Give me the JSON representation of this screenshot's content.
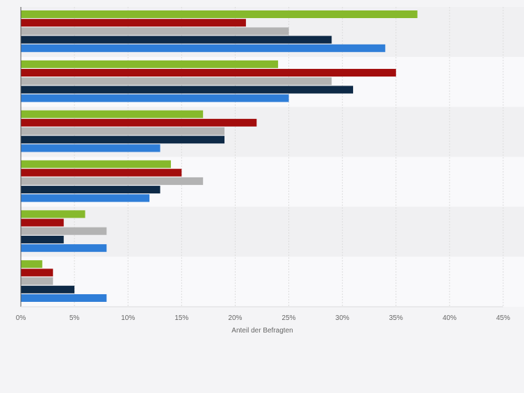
{
  "chart_data": {
    "type": "bar",
    "orientation": "horizontal",
    "xlabel": "Anteil der Befragten",
    "xlim": [
      0,
      45
    ],
    "x_ticks": [
      "0%",
      "5%",
      "10%",
      "15%",
      "20%",
      "25%",
      "30%",
      "35%",
      "40%",
      "45%"
    ],
    "x_tick_values": [
      0,
      5,
      10,
      15,
      20,
      25,
      30,
      35,
      40,
      45
    ],
    "grid": true,
    "legend": "none",
    "groups": 6,
    "series": [
      {
        "color": "#86b92c",
        "values": [
          37,
          24,
          17,
          14,
          6,
          2
        ]
      },
      {
        "color": "#a30d0d",
        "values": [
          21,
          35,
          22,
          15,
          4,
          3
        ]
      },
      {
        "color": "#b3b3b3",
        "values": [
          25,
          29,
          19,
          17,
          8,
          3
        ]
      },
      {
        "color": "#0e2a47",
        "values": [
          29,
          31,
          19,
          13,
          4,
          5
        ]
      },
      {
        "color": "#2f7ed8",
        "values": [
          34,
          25,
          13,
          12,
          8,
          8
        ]
      }
    ]
  },
  "colors": {
    "band_dark": "#f0f0f2",
    "band_light": "#f9f9fb",
    "grid": "#dcdcdc",
    "axis": "#555555",
    "tick_text": "#666666"
  }
}
